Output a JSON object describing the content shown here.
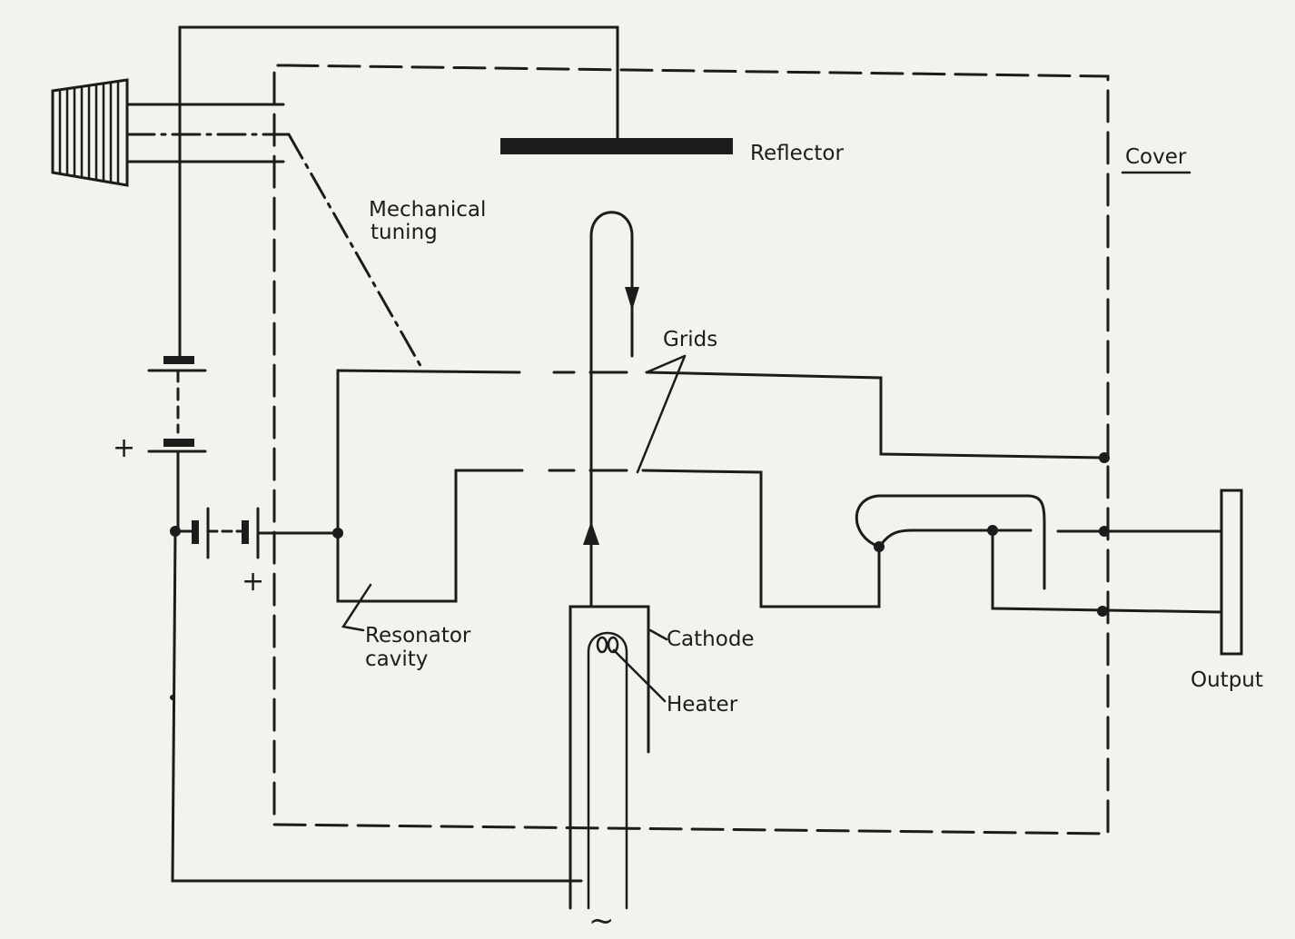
{
  "labels": {
    "reflector": "Reflector",
    "cover": "Cover",
    "mechanical_tuning_line1": "Mechanical",
    "mechanical_tuning_line2": "tuning",
    "grids": "Grids",
    "resonator_line1": "Resonator",
    "resonator_line2": "cavity",
    "cathode": "Cathode",
    "heater": "Heater",
    "output": "Output",
    "plus_upper": "+",
    "plus_lower": "+",
    "ac_supply": "~"
  }
}
